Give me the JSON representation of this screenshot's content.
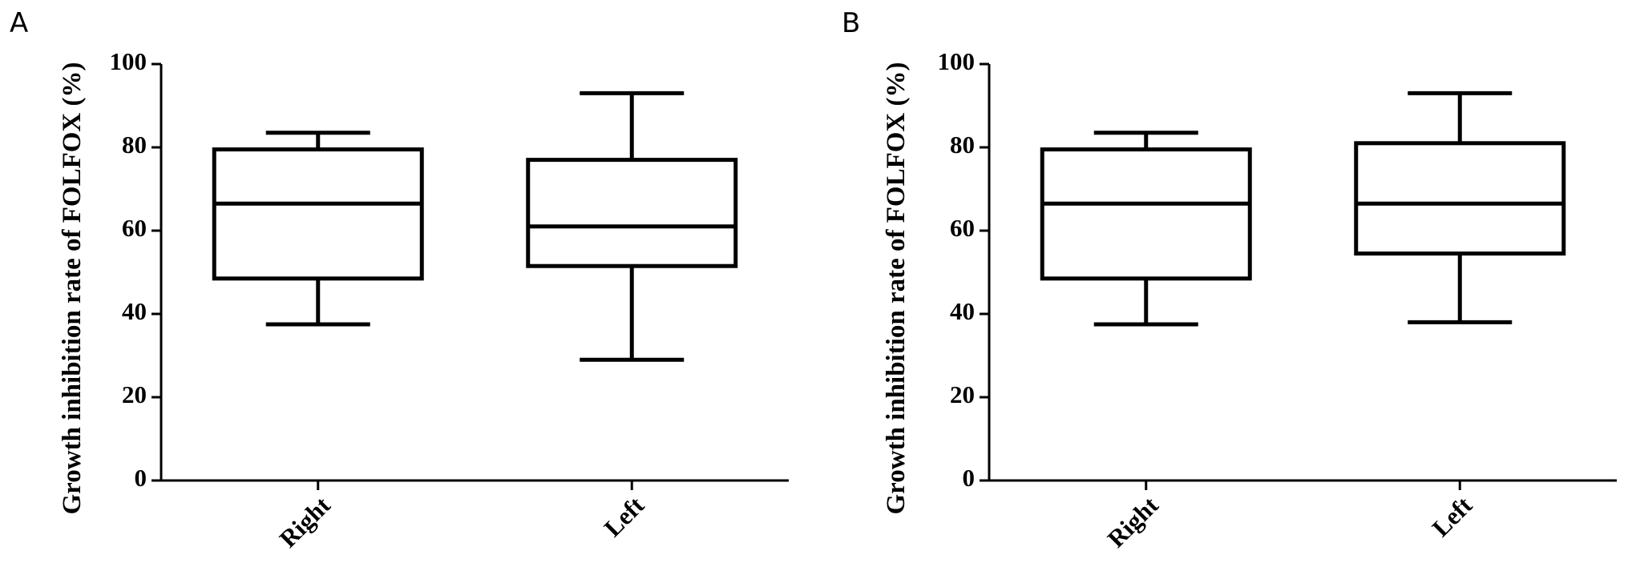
{
  "chart_data": [
    {
      "type": "box",
      "panel_label": "A",
      "ylabel": "Growth inhibition rate of FOLFOX (%)",
      "categories": [
        "Right",
        "Left"
      ],
      "stats": [
        {
          "min": 37.5,
          "q1": 48.5,
          "median": 66.5,
          "q3": 79.5,
          "max": 83.5
        },
        {
          "min": 29,
          "q1": 51.5,
          "median": 61,
          "q3": 77,
          "max": 93
        }
      ],
      "color": "#000000",
      "ylim": [
        0,
        100
      ],
      "yticks": [
        0,
        20,
        40,
        60,
        80,
        100
      ]
    },
    {
      "type": "box",
      "panel_label": "B",
      "ylabel": "Growth inhibition rate of FOLFOX (%)",
      "categories": [
        "Right",
        "Left"
      ],
      "stats": [
        {
          "min": 37.5,
          "q1": 48.5,
          "median": 66.5,
          "q3": 79.5,
          "max": 83.5
        },
        {
          "min": 38,
          "q1": 54.5,
          "median": 66.5,
          "q3": 81,
          "max": 93
        }
      ],
      "color": "#000000",
      "ylim": [
        0,
        100
      ],
      "yticks": [
        0,
        20,
        40,
        60,
        80,
        100
      ]
    }
  ]
}
